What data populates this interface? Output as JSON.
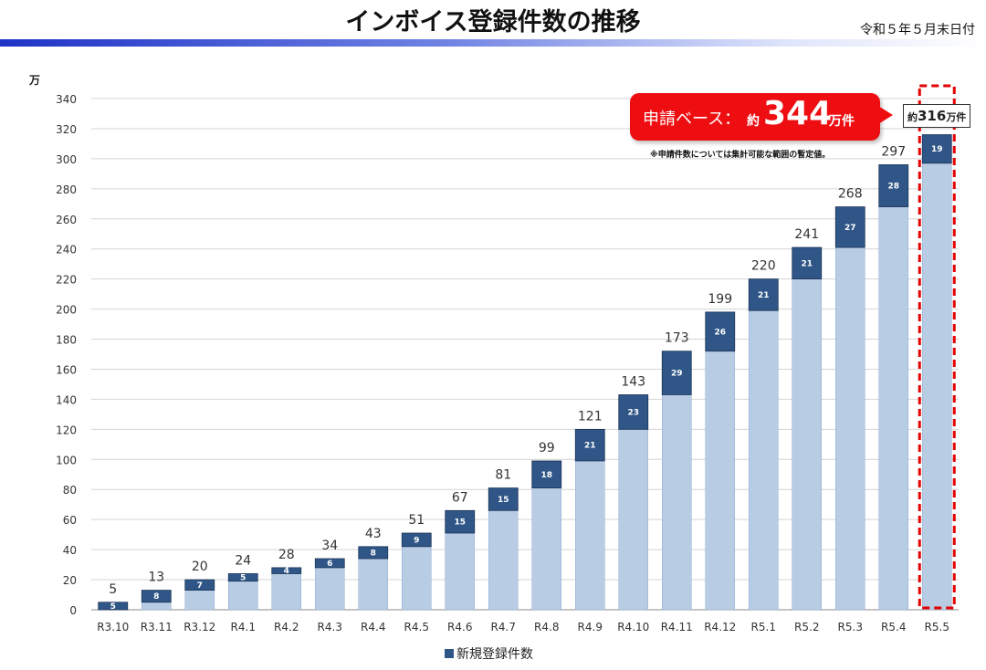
{
  "header": {
    "title": "インボイス登録件数の推移",
    "date": "令和５年５月末日付"
  },
  "callout": {
    "label": "申請ベース：",
    "prefix": "約",
    "value": "344",
    "unit": "万件",
    "note": "※申請件数については集計可能な範囲の暫定値。"
  },
  "total_box": {
    "prefix": "約",
    "value": "316",
    "unit": "万件"
  },
  "colors": {
    "cumulative": "#b8cce4",
    "new": "#2f5687",
    "highlight": "#e30000",
    "callout": "#ee0e12"
  },
  "chart_data": {
    "type": "bar",
    "stacked": true,
    "ylabel": "万",
    "ylim": [
      0,
      340
    ],
    "yticks": [
      0,
      20,
      40,
      60,
      80,
      100,
      120,
      140,
      160,
      180,
      200,
      220,
      240,
      260,
      280,
      300,
      320,
      340
    ],
    "grid": true,
    "legend_position": "bottom",
    "categories": [
      "R3.10",
      "R3.11",
      "R3.12",
      "R4.1",
      "R4.2",
      "R4.3",
      "R4.4",
      "R4.5",
      "R4.6",
      "R4.7",
      "R4.8",
      "R4.9",
      "R4.10",
      "R4.11",
      "R4.12",
      "R5.1",
      "R5.2",
      "R5.3",
      "R5.4",
      "R5.5"
    ],
    "totals": [
      5,
      13,
      20,
      24,
      28,
      34,
      43,
      51,
      67,
      81,
      99,
      121,
      143,
      173,
      199,
      220,
      241,
      268,
      297,
      316
    ],
    "total_labels": [
      "5",
      "13",
      "20",
      "24",
      "28",
      "34",
      "43",
      "51",
      "67",
      "81",
      "99",
      "121",
      "143",
      "173",
      "199",
      "220",
      "241",
      "268",
      "297",
      ""
    ],
    "series": [
      {
        "name": "",
        "values": [
          0,
          5,
          13,
          19,
          24,
          28,
          34,
          42,
          51,
          66,
          81,
          99,
          120,
          143,
          172,
          199,
          220,
          241,
          268,
          297
        ]
      },
      {
        "name": "新規登録件数",
        "values": [
          5,
          8,
          7,
          5,
          4,
          6,
          8,
          9,
          15,
          15,
          18,
          21,
          23,
          29,
          26,
          21,
          21,
          27,
          28,
          19
        ]
      }
    ],
    "highlight_category": "R5.5"
  }
}
